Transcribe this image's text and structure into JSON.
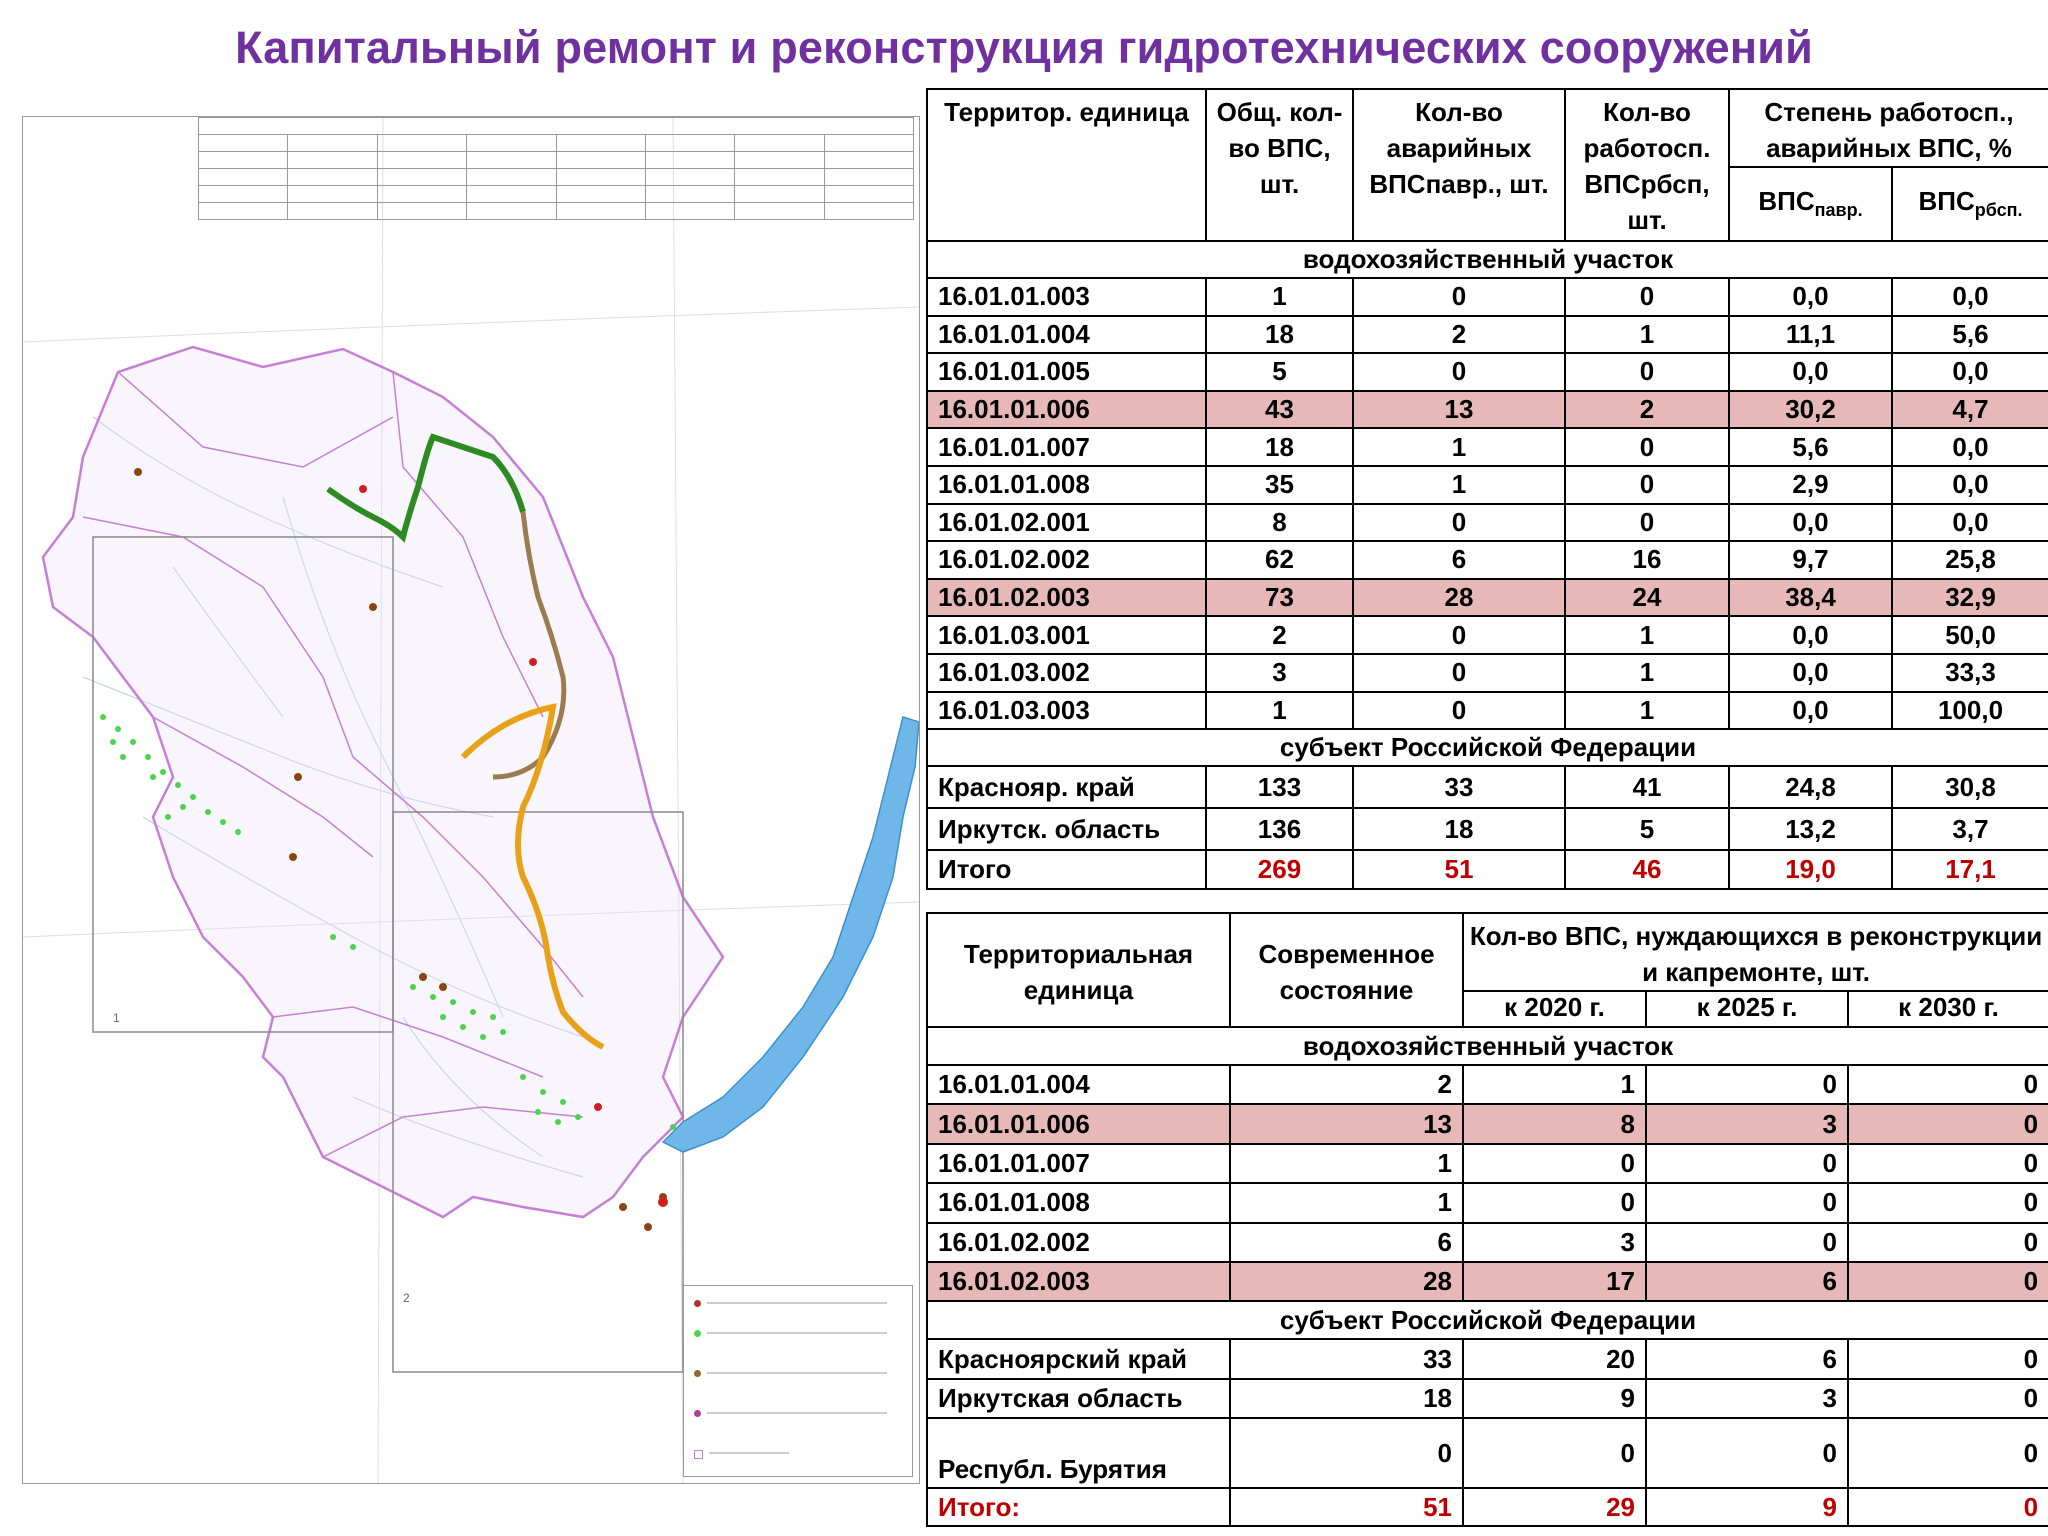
{
  "title": "Капитальный ремонт и реконструкция гидротехнических сооружений",
  "colors": {
    "title": "#7030a0",
    "highlight_row": "#e6b9b8",
    "total_red": "#c00000",
    "lake": "#6fb7e8",
    "basin_border": "#c77fd6",
    "reservoir_green": "#2e8b22",
    "reservoir_orange": "#e8a21a",
    "reservoir_brown": "#9c7c4c"
  },
  "table1": {
    "headers": {
      "unit": "Территор. единица",
      "total": "Общ. кол-во ВПС, шт.",
      "emergency": "Кол-во аварийных ВПСпавр., шт.",
      "working": "Кол-во работосп. ВПСрбсп, шт.",
      "degree": "Степень работосп., аварийных ВПС, %",
      "pct_avar_main": "ВПС",
      "pct_avar_sub": "павр.",
      "pct_rbsp_main": "ВПС",
      "pct_rbsp_sub": "рбсп."
    },
    "section_water": "водохозяйственный участок",
    "rows": [
      {
        "code": "16.01.01.003",
        "total": "1",
        "avar": "0",
        "rbsp": "0",
        "p_avar": "0,0",
        "p_rbsp": "0,0",
        "highlight": false
      },
      {
        "code": "16.01.01.004",
        "total": "18",
        "avar": "2",
        "rbsp": "1",
        "p_avar": "11,1",
        "p_rbsp": "5,6",
        "highlight": false
      },
      {
        "code": "16.01.01.005",
        "total": "5",
        "avar": "0",
        "rbsp": "0",
        "p_avar": "0,0",
        "p_rbsp": "0,0",
        "highlight": false
      },
      {
        "code": "16.01.01.006",
        "total": "43",
        "avar": "13",
        "rbsp": "2",
        "p_avar": "30,2",
        "p_rbsp": "4,7",
        "highlight": true
      },
      {
        "code": "16.01.01.007",
        "total": "18",
        "avar": "1",
        "rbsp": "0",
        "p_avar": "5,6",
        "p_rbsp": "0,0",
        "highlight": false
      },
      {
        "code": "16.01.01.008",
        "total": "35",
        "avar": "1",
        "rbsp": "0",
        "p_avar": "2,9",
        "p_rbsp": "0,0",
        "highlight": false
      },
      {
        "code": "16.01.02.001",
        "total": "8",
        "avar": "0",
        "rbsp": "0",
        "p_avar": "0,0",
        "p_rbsp": "0,0",
        "highlight": false
      },
      {
        "code": "16.01.02.002",
        "total": "62",
        "avar": "6",
        "rbsp": "16",
        "p_avar": "9,7",
        "p_rbsp": "25,8",
        "highlight": false
      },
      {
        "code": "16.01.02.003",
        "total": "73",
        "avar": "28",
        "rbsp": "24",
        "p_avar": "38,4",
        "p_rbsp": "32,9",
        "highlight": true
      },
      {
        "code": "16.01.03.001",
        "total": "2",
        "avar": "0",
        "rbsp": "1",
        "p_avar": "0,0",
        "p_rbsp": "50,0",
        "highlight": false
      },
      {
        "code": "16.01.03.002",
        "total": "3",
        "avar": "0",
        "rbsp": "1",
        "p_avar": "0,0",
        "p_rbsp": "33,3",
        "highlight": false
      },
      {
        "code": "16.01.03.003",
        "total": "1",
        "avar": "0",
        "rbsp": "1",
        "p_avar": "0,0",
        "p_rbsp": "100,0",
        "highlight": false
      }
    ],
    "section_subject": "субъект Российской Федерации",
    "subjects": [
      {
        "code": "Краснояр. край",
        "total": "133",
        "avar": "33",
        "rbsp": "41",
        "p_avar": "24,8",
        "p_rbsp": "30,8"
      },
      {
        "code": "Иркутск. область",
        "total": "136",
        "avar": "18",
        "rbsp": "5",
        "p_avar": "13,2",
        "p_rbsp": "3,7"
      }
    ],
    "total": {
      "code": "Итого",
      "total": "269",
      "avar": "51",
      "rbsp": "46",
      "p_avar": "19,0",
      "p_rbsp": "17,1"
    }
  },
  "table2": {
    "headers": {
      "unit": "Территориальная единица",
      "state": "Современное состояние",
      "need": "Кол-во ВПС, нуждающихся в реконструкции и капремонте, шт.",
      "y2020": "к 2020 г.",
      "y2025": "к 2025 г.",
      "y2030": "к 2030 г."
    },
    "section_water": "водохозяйственный участок",
    "rows": [
      {
        "code": "16.01.01.004",
        "state": "2",
        "y2020": "1",
        "y2025": "0",
        "y2030": "0",
        "highlight": false
      },
      {
        "code": "16.01.01.006",
        "state": "13",
        "y2020": "8",
        "y2025": "3",
        "y2030": "0",
        "highlight": true
      },
      {
        "code": "16.01.01.007",
        "state": "1",
        "y2020": "0",
        "y2025": "0",
        "y2030": "0",
        "highlight": false
      },
      {
        "code": "16.01.01.008",
        "state": "1",
        "y2020": "0",
        "y2025": "0",
        "y2030": "0",
        "highlight": false
      },
      {
        "code": "16.01.02.002",
        "state": "6",
        "y2020": "3",
        "y2025": "0",
        "y2030": "0",
        "highlight": false
      },
      {
        "code": "16.01.02.003",
        "state": "28",
        "y2020": "17",
        "y2025": "6",
        "y2030": "0",
        "highlight": true
      }
    ],
    "section_subject": "субъект Российской Федерации",
    "subjects": [
      {
        "code": "Красноярский край",
        "state": "33",
        "y2020": "20",
        "y2025": "6",
        "y2030": "0"
      },
      {
        "code": "Иркутская область",
        "state": "18",
        "y2020": "9",
        "y2025": "3",
        "y2030": "0"
      },
      {
        "code": "Республ. Бурятия",
        "state": "0",
        "y2020": "0",
        "y2025": "0",
        "y2030": "0"
      }
    ],
    "total": {
      "code": "Итого:",
      "state": "51",
      "y2020": "29",
      "y2025": "9",
      "y2030": "0"
    }
  }
}
